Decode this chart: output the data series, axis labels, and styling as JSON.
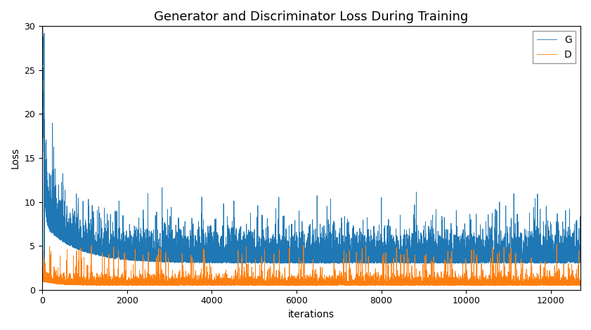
{
  "title": "Generator and Discriminator Loss During Training",
  "xlabel": "iterations",
  "ylabel": "Loss",
  "ylim": [
    0,
    30
  ],
  "xlim": [
    0,
    12700
  ],
  "g_color": "#1f77b4",
  "d_color": "#ff7f0e",
  "g_label": "G",
  "d_label": "D",
  "figsize": [
    8.41,
    4.7
  ],
  "dpi": 100,
  "title_fontsize": 13,
  "axis_label_fontsize": 10,
  "tick_fontsize": 9,
  "legend_fontsize": 10,
  "n_points": 12700,
  "seed": 17
}
